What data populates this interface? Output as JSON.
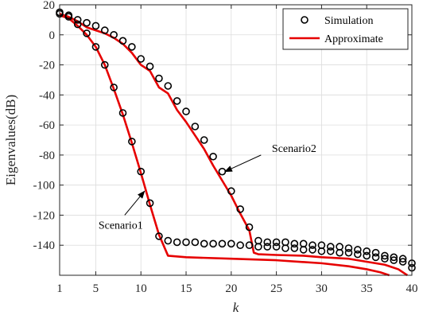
{
  "chart_data": {
    "type": "scatter",
    "xlabel": "k",
    "ylabel": "Eigenvalues(dB)",
    "xlim": [
      1,
      40
    ],
    "ylim": [
      -160,
      20
    ],
    "xticks": [
      1,
      5,
      10,
      15,
      20,
      25,
      30,
      35,
      40
    ],
    "yticks": [
      20,
      0,
      -20,
      -40,
      -60,
      -80,
      -100,
      -120,
      -140
    ],
    "grid": true,
    "legend_position": "top-right",
    "legend": [
      {
        "label": "Simulation",
        "marker": "circle",
        "color": "#000000"
      },
      {
        "label": "Approximate",
        "marker": "line",
        "color": "#e60000"
      }
    ],
    "series": [
      {
        "name": "Simulation",
        "style": "markers",
        "color": "#000000",
        "points": [
          [
            1,
            15
          ],
          [
            2,
            13
          ],
          [
            3,
            10
          ],
          [
            4,
            8
          ],
          [
            5,
            6
          ],
          [
            6,
            3
          ],
          [
            7,
            0
          ],
          [
            8,
            -4
          ],
          [
            9,
            -8
          ],
          [
            10,
            -16
          ],
          [
            11,
            -21
          ],
          [
            12,
            -29
          ],
          [
            13,
            -34
          ],
          [
            14,
            -44
          ],
          [
            15,
            -51
          ],
          [
            16,
            -61
          ],
          [
            17,
            -70
          ],
          [
            18,
            -81
          ],
          [
            19,
            -91
          ],
          [
            20,
            -104
          ],
          [
            21,
            -116
          ],
          [
            22,
            -128
          ],
          [
            23,
            -137
          ],
          [
            24,
            -138
          ],
          [
            25,
            -138
          ],
          [
            26,
            -138
          ],
          [
            27,
            -139
          ],
          [
            28,
            -139
          ],
          [
            29,
            -140
          ],
          [
            30,
            -140
          ],
          [
            31,
            -141
          ],
          [
            32,
            -141
          ],
          [
            33,
            -142
          ],
          [
            34,
            -143
          ],
          [
            35,
            -144
          ],
          [
            36,
            -145
          ],
          [
            37,
            -147
          ],
          [
            38,
            -148
          ],
          [
            39,
            -149
          ],
          [
            40,
            -152
          ]
        ]
      },
      {
        "name": "Simulation",
        "style": "markers",
        "color": "#000000",
        "points": [
          [
            1,
            14
          ],
          [
            2,
            12
          ],
          [
            3,
            7
          ],
          [
            4,
            1
          ],
          [
            5,
            -8
          ],
          [
            6,
            -20
          ],
          [
            7,
            -35
          ],
          [
            8,
            -52
          ],
          [
            9,
            -71
          ],
          [
            10,
            -91
          ],
          [
            11,
            -112
          ],
          [
            12,
            -134
          ],
          [
            13,
            -137
          ],
          [
            14,
            -138
          ],
          [
            15,
            -138
          ],
          [
            16,
            -138
          ],
          [
            17,
            -139
          ],
          [
            18,
            -139
          ],
          [
            19,
            -139
          ],
          [
            20,
            -139
          ],
          [
            21,
            -140
          ],
          [
            22,
            -140
          ],
          [
            23,
            -141
          ],
          [
            24,
            -141
          ],
          [
            25,
            -141
          ],
          [
            26,
            -142
          ],
          [
            27,
            -142
          ],
          [
            28,
            -143
          ],
          [
            29,
            -143
          ],
          [
            30,
            -144
          ],
          [
            31,
            -144
          ],
          [
            32,
            -145
          ],
          [
            33,
            -145
          ],
          [
            34,
            -146
          ],
          [
            35,
            -147
          ],
          [
            36,
            -148
          ],
          [
            37,
            -149
          ],
          [
            38,
            -150
          ],
          [
            39,
            -151
          ],
          [
            40,
            -155
          ]
        ]
      },
      {
        "name": "Approximate",
        "style": "line",
        "color": "#e60000",
        "points": [
          [
            1,
            14
          ],
          [
            2,
            12
          ],
          [
            3,
            9
          ],
          [
            4,
            5
          ],
          [
            5,
            3
          ],
          [
            6,
            1
          ],
          [
            7,
            -2
          ],
          [
            8,
            -6
          ],
          [
            9,
            -12
          ],
          [
            10,
            -20
          ],
          [
            11,
            -24
          ],
          [
            12,
            -35
          ],
          [
            13,
            -39
          ],
          [
            14,
            -50
          ],
          [
            15,
            -58
          ],
          [
            16,
            -67
          ],
          [
            17,
            -76
          ],
          [
            18,
            -87
          ],
          [
            19,
            -97
          ],
          [
            20,
            -107
          ],
          [
            21,
            -119
          ],
          [
            22,
            -130
          ],
          [
            22.5,
            -145
          ],
          [
            23,
            -146
          ],
          [
            25,
            -146.5
          ],
          [
            28,
            -147
          ],
          [
            30,
            -148
          ],
          [
            33,
            -149
          ],
          [
            35,
            -151
          ],
          [
            37,
            -153
          ],
          [
            38.5,
            -156
          ],
          [
            39.5,
            -160
          ]
        ]
      },
      {
        "name": "Approximate",
        "style": "line",
        "color": "#e60000",
        "points": [
          [
            1,
            13
          ],
          [
            2,
            11
          ],
          [
            3,
            6
          ],
          [
            4,
            0
          ],
          [
            5,
            -8
          ],
          [
            6,
            -20
          ],
          [
            7,
            -36
          ],
          [
            8,
            -53
          ],
          [
            9,
            -72
          ],
          [
            10,
            -92
          ],
          [
            11,
            -113
          ],
          [
            12,
            -133
          ],
          [
            13,
            -147
          ],
          [
            15,
            -148
          ],
          [
            20,
            -149
          ],
          [
            25,
            -150
          ],
          [
            30,
            -152
          ],
          [
            33,
            -154
          ],
          [
            35,
            -156
          ],
          [
            36.5,
            -158
          ],
          [
            37.5,
            -160
          ]
        ]
      }
    ],
    "annotations": [
      {
        "label": "Scenario2",
        "text_at": [
          24.5,
          -78
        ],
        "arrow_from": [
          23.3,
          -80
        ],
        "arrow_to": [
          19.3,
          -91
        ]
      },
      {
        "label": "Scenario1",
        "text_at": [
          5.3,
          -129
        ],
        "arrow_from": [
          8.2,
          -120
        ],
        "arrow_to": [
          10.4,
          -104
        ]
      }
    ]
  }
}
